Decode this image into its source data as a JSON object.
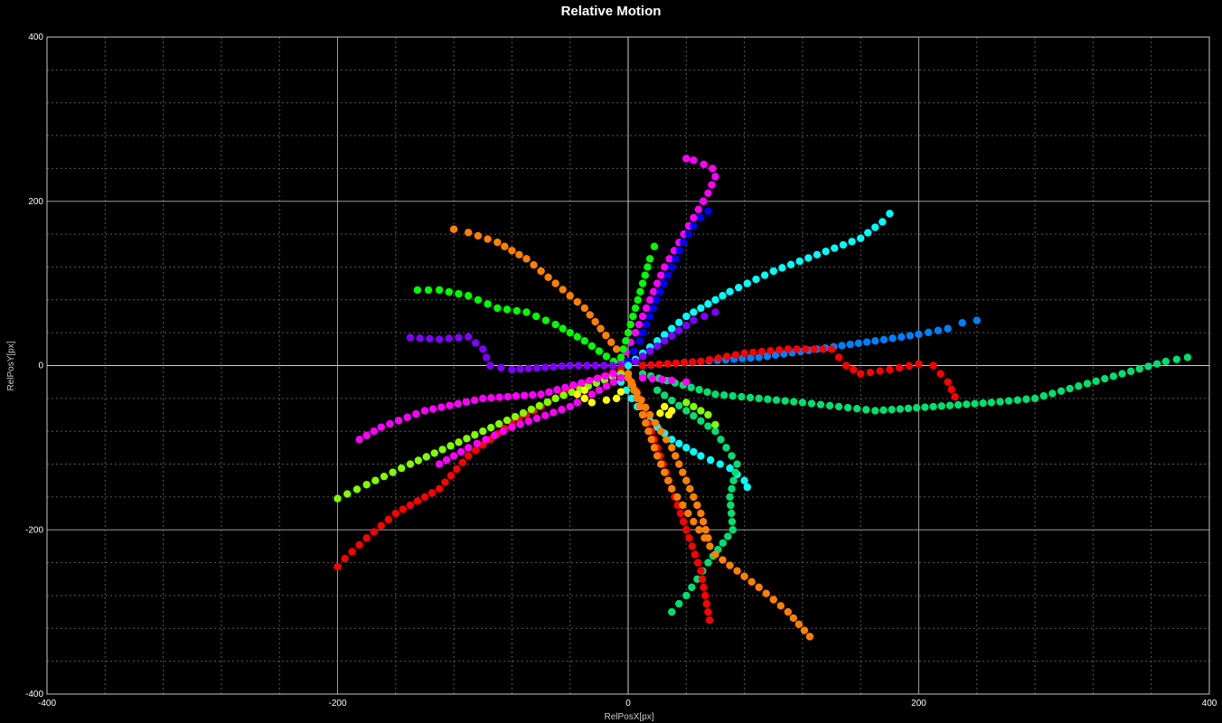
{
  "chart_data": {
    "type": "scatter",
    "title": "Relative Motion",
    "xlabel": "RelPosX[px]",
    "ylabel": "RelPosY[px]",
    "xlim": [
      -400,
      400
    ],
    "ylim": [
      -400,
      400
    ],
    "xticks": [
      -400,
      -200,
      0,
      200,
      400
    ],
    "yticks": [
      -400,
      -200,
      0,
      200,
      400
    ],
    "grid": true,
    "series": [
      {
        "color": "#ff00ff",
        "points": [
          [
            -5,
            5
          ],
          [
            5,
            40
          ],
          [
            15,
            80
          ],
          [
            25,
            120
          ],
          [
            35,
            150
          ],
          [
            45,
            180
          ],
          [
            55,
            210
          ],
          [
            60,
            230
          ],
          [
            58,
            240
          ],
          [
            52,
            245
          ],
          [
            45,
            250
          ],
          [
            40,
            252
          ]
        ]
      },
      {
        "color": "#0000ff",
        "points": [
          [
            0,
            5
          ],
          [
            8,
            30
          ],
          [
            15,
            60
          ],
          [
            22,
            90
          ],
          [
            30,
            120
          ],
          [
            38,
            150
          ],
          [
            45,
            170
          ],
          [
            50,
            180
          ],
          [
            55,
            188
          ]
        ]
      },
      {
        "color": "#00ffff",
        "points": [
          [
            0,
            0
          ],
          [
            20,
            30
          ],
          [
            40,
            60
          ],
          [
            70,
            90
          ],
          [
            100,
            115
          ],
          [
            130,
            135
          ],
          [
            160,
            155
          ],
          [
            175,
            175
          ],
          [
            180,
            185
          ]
        ]
      },
      {
        "color": "#00ff00",
        "points": [
          [
            -5,
            10
          ],
          [
            0,
            40
          ],
          [
            5,
            70
          ],
          [
            10,
            100
          ],
          [
            15,
            130
          ],
          [
            18,
            145
          ]
        ]
      },
      {
        "color": "#ff8000",
        "points": [
          [
            -8,
            20
          ],
          [
            -30,
            70
          ],
          [
            -50,
            100
          ],
          [
            -70,
            130
          ],
          [
            -90,
            150
          ],
          [
            -110,
            162
          ],
          [
            -120,
            166
          ]
        ]
      },
      {
        "color": "#00ff00",
        "points": [
          [
            -10,
            5
          ],
          [
            -30,
            30
          ],
          [
            -50,
            50
          ],
          [
            -70,
            65
          ],
          [
            -90,
            70
          ],
          [
            -110,
            85
          ],
          [
            -130,
            92
          ],
          [
            -145,
            92
          ]
        ]
      },
      {
        "color": "#8000ff",
        "points": [
          [
            -5,
            0
          ],
          [
            -40,
            0
          ],
          [
            -80,
            -5
          ],
          [
            -95,
            0
          ],
          [
            -100,
            20
          ],
          [
            -110,
            35
          ],
          [
            -130,
            32
          ],
          [
            -150,
            34
          ]
        ]
      },
      {
        "color": "#8000ff",
        "points": [
          [
            5,
            5
          ],
          [
            25,
            30
          ],
          [
            45,
            55
          ],
          [
            60,
            65
          ]
        ]
      },
      {
        "color": "#0080ff",
        "points": [
          [
            10,
            0
          ],
          [
            50,
            5
          ],
          [
            90,
            10
          ],
          [
            130,
            20
          ],
          [
            170,
            30
          ],
          [
            200,
            38
          ],
          [
            220,
            45
          ],
          [
            230,
            52
          ],
          [
            240,
            55
          ]
        ]
      },
      {
        "color": "#ff0000",
        "points": [
          [
            10,
            0
          ],
          [
            50,
            5
          ],
          [
            80,
            15
          ],
          [
            110,
            20
          ],
          [
            140,
            20
          ],
          [
            150,
            0
          ],
          [
            160,
            -10
          ],
          [
            180,
            -5
          ],
          [
            200,
            2
          ],
          [
            210,
            0
          ],
          [
            220,
            -20
          ],
          [
            225,
            -38
          ]
        ]
      },
      {
        "color": "#00e070",
        "points": [
          [
            10,
            -10
          ],
          [
            60,
            -35
          ],
          [
            120,
            -45
          ],
          [
            170,
            -55
          ],
          [
            210,
            -50
          ],
          [
            250,
            -45
          ],
          [
            280,
            -40
          ],
          [
            310,
            -25
          ],
          [
            340,
            -10
          ],
          [
            370,
            5
          ],
          [
            385,
            10
          ]
        ]
      },
      {
        "color": "#00ffff",
        "points": [
          [
            -5,
            -20
          ],
          [
            10,
            -60
          ],
          [
            30,
            -90
          ],
          [
            50,
            -110
          ],
          [
            70,
            -125
          ],
          [
            80,
            -140
          ],
          [
            82,
            -148
          ]
        ]
      },
      {
        "color": "#00e070",
        "points": [
          [
            20,
            -30
          ],
          [
            60,
            -80
          ],
          [
            75,
            -120
          ],
          [
            70,
            -160
          ],
          [
            72,
            -200
          ],
          [
            55,
            -240
          ],
          [
            40,
            -280
          ],
          [
            30,
            -300
          ]
        ]
      },
      {
        "color": "#ff0000",
        "points": [
          [
            0,
            -10
          ],
          [
            10,
            -50
          ],
          [
            20,
            -100
          ],
          [
            30,
            -150
          ],
          [
            40,
            -200
          ],
          [
            50,
            -250
          ],
          [
            55,
            -300
          ],
          [
            56,
            -310
          ]
        ]
      },
      {
        "color": "#ff8000",
        "points": [
          [
            0,
            -10
          ],
          [
            10,
            -60
          ],
          [
            20,
            -110
          ],
          [
            30,
            -150
          ],
          [
            45,
            -190
          ],
          [
            60,
            -230
          ],
          [
            90,
            -270
          ],
          [
            110,
            -300
          ],
          [
            125,
            -330
          ]
        ]
      },
      {
        "color": "#ff8000",
        "points": [
          [
            0,
            -15
          ],
          [
            15,
            -60
          ],
          [
            30,
            -100
          ],
          [
            40,
            -140
          ],
          [
            50,
            -180
          ],
          [
            55,
            -210
          ]
        ]
      },
      {
        "color": "#ff0000",
        "points": [
          [
            -5,
            -5
          ],
          [
            -40,
            -30
          ],
          [
            -80,
            -70
          ],
          [
            -110,
            -110
          ],
          [
            -130,
            -150
          ],
          [
            -160,
            -180
          ],
          [
            -180,
            -210
          ],
          [
            -195,
            -235
          ],
          [
            -200,
            -245
          ]
        ]
      },
      {
        "color": "#80ff00",
        "points": [
          [
            -5,
            -10
          ],
          [
            -50,
            -40
          ],
          [
            -100,
            -80
          ],
          [
            -150,
            -120
          ],
          [
            -180,
            -145
          ],
          [
            -200,
            -162
          ]
        ]
      },
      {
        "color": "#ff00ff",
        "points": [
          [
            -10,
            -10
          ],
          [
            -60,
            -35
          ],
          [
            -100,
            -40
          ],
          [
            -140,
            -55
          ],
          [
            -170,
            -75
          ],
          [
            -185,
            -90
          ]
        ]
      },
      {
        "color": "#ff00ff",
        "points": [
          [
            -5,
            -15
          ],
          [
            -40,
            -50
          ],
          [
            -80,
            -75
          ],
          [
            -110,
            -100
          ],
          [
            -130,
            -120
          ]
        ]
      },
      {
        "color": "#ffff00",
        "points": [
          [
            -30,
            -30
          ],
          [
            -35,
            -35
          ],
          [
            -25,
            -45
          ],
          [
            -15,
            -42
          ],
          [
            -8,
            -40
          ],
          [
            -5,
            -32
          ]
        ]
      },
      {
        "color": "#ffff00",
        "points": [
          [
            25,
            -50
          ],
          [
            30,
            -55
          ],
          [
            28,
            -60
          ],
          [
            22,
            -58
          ]
        ]
      },
      {
        "color": "#80ff00",
        "points": [
          [
            40,
            -45
          ],
          [
            55,
            -60
          ],
          [
            60,
            -72
          ]
        ]
      },
      {
        "color": "#ff00ff",
        "points": [
          [
            10,
            -15
          ],
          [
            30,
            -18
          ],
          [
            40,
            -20
          ]
        ]
      }
    ]
  }
}
